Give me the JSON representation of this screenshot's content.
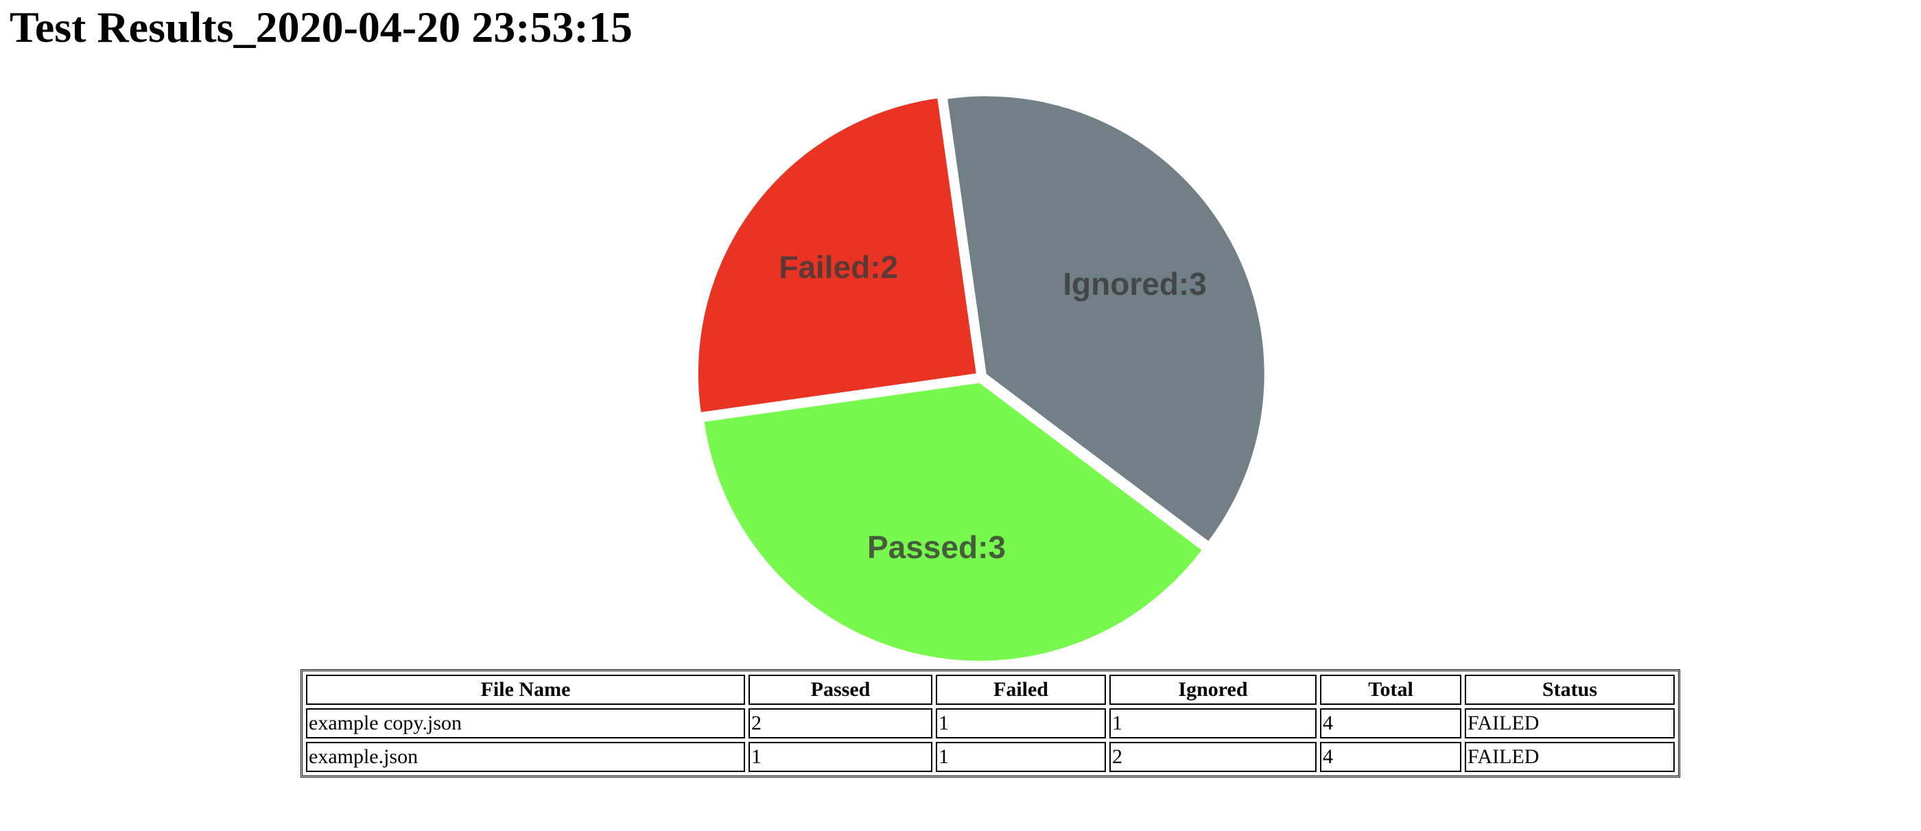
{
  "page": {
    "title": "Test Results_2020-04-20 23:53:15"
  },
  "chart_data": {
    "type": "pie",
    "title": "",
    "slices": [
      {
        "label": "Ignored:3",
        "category": "Ignored",
        "value": 3,
        "color": "#717f87"
      },
      {
        "label": "Passed:3",
        "category": "Passed",
        "value": 3,
        "color": "#76f94c"
      },
      {
        "label": "Failed:2",
        "category": "Failed",
        "value": 2,
        "color": "#e93323"
      }
    ],
    "legend": "none"
  },
  "table": {
    "headers": [
      "File Name",
      "Passed",
      "Failed",
      "Ignored",
      "Total",
      "Status"
    ],
    "rows": [
      [
        "example copy.json",
        "2",
        "1",
        "1",
        "4",
        "FAILED"
      ],
      [
        "example.json",
        "1",
        "1",
        "2",
        "4",
        "FAILED"
      ]
    ]
  }
}
